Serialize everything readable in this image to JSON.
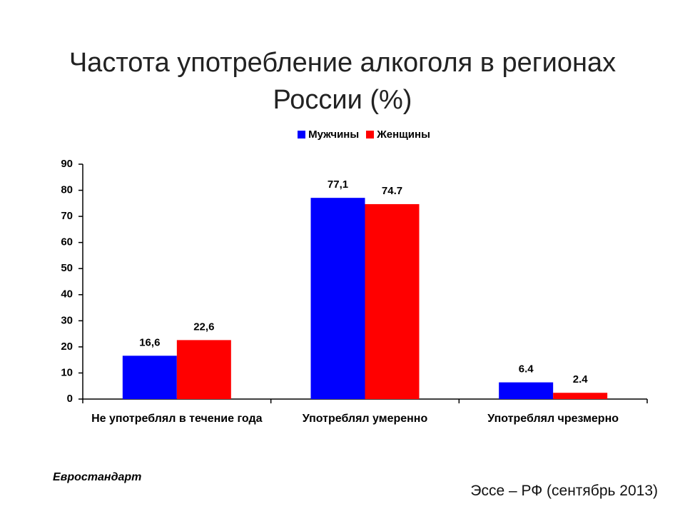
{
  "chart_data": {
    "type": "bar",
    "title": "Частота употребление алкоголя в регионах России (%)",
    "categories": [
      "Не употреблял в течение года",
      "Употреблял умеренно",
      "Употреблял чрезмерно"
    ],
    "series": [
      {
        "name": "Мужчины",
        "color": "#0000ff",
        "values": [
          16.6,
          77.1,
          6.4
        ],
        "value_labels": [
          "16,6",
          "77,1",
          "6.4"
        ]
      },
      {
        "name": "Женщины",
        "color": "#ff0000",
        "values": [
          22.6,
          74.7,
          2.4
        ],
        "value_labels": [
          "22,6",
          "74.7",
          "2.4"
        ]
      }
    ],
    "ylim": [
      0,
      90
    ],
    "yticks": [
      0,
      10,
      20,
      30,
      40,
      50,
      60,
      70,
      80,
      90
    ],
    "grid": false,
    "legend": "top",
    "note": "Евростандарт",
    "source": "Эссе – РФ (сентябрь 2013)"
  }
}
